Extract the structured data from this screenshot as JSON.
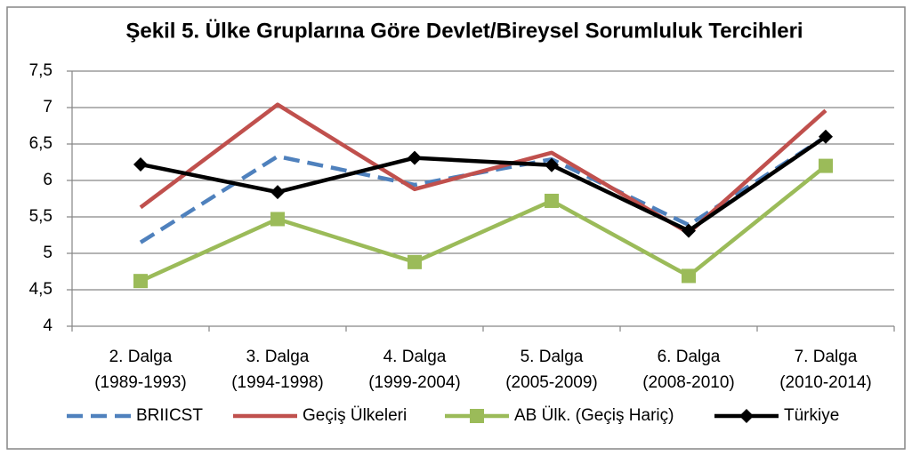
{
  "chart_data": {
    "type": "line",
    "title": "Şekil 5. Ülke Gruplarına Göre Devlet/Bireysel Sorumluluk Tercihleri",
    "categories": [
      [
        "2. Dalga",
        "(1989-1993)"
      ],
      [
        "3. Dalga",
        "(1994-1998)"
      ],
      [
        "4. Dalga",
        "(1999-2004)"
      ],
      [
        "5. Dalga",
        "(2005-2009)"
      ],
      [
        "6. Dalga",
        "(2008-2010)"
      ],
      [
        "7. Dalga",
        "(2010-2014)"
      ]
    ],
    "series": [
      {
        "name": "BRIICST",
        "color": "#4f81bd",
        "dash": true,
        "values": [
          5.15,
          6.33,
          5.94,
          6.29,
          5.39,
          6.6
        ]
      },
      {
        "name": "Geçiş Ülkeleri",
        "color": "#c0504d",
        "values": [
          5.63,
          7.04,
          5.88,
          6.38,
          5.28,
          6.96
        ]
      },
      {
        "name": "AB Ülk. (Geçiş Hariç)",
        "color": "#9bbb59",
        "marker": "square",
        "values": [
          4.62,
          5.47,
          4.88,
          5.72,
          4.69,
          6.2
        ]
      },
      {
        "name": "Türkiye",
        "color": "#000000",
        "marker": "diamond",
        "values": [
          6.22,
          5.84,
          6.31,
          6.21,
          5.31,
          6.6
        ]
      }
    ],
    "ylim": [
      4,
      7.5
    ],
    "yticks": [
      4,
      {
        "value": 4.5,
        "label": "4,5"
      },
      5,
      {
        "value": 5.5,
        "label": "5,5"
      },
      6,
      {
        "value": 6.5,
        "label": "6,5"
      },
      7,
      {
        "value": 7.5,
        "label": "7,5"
      }
    ],
    "grid": true,
    "legend": "bottom"
  }
}
